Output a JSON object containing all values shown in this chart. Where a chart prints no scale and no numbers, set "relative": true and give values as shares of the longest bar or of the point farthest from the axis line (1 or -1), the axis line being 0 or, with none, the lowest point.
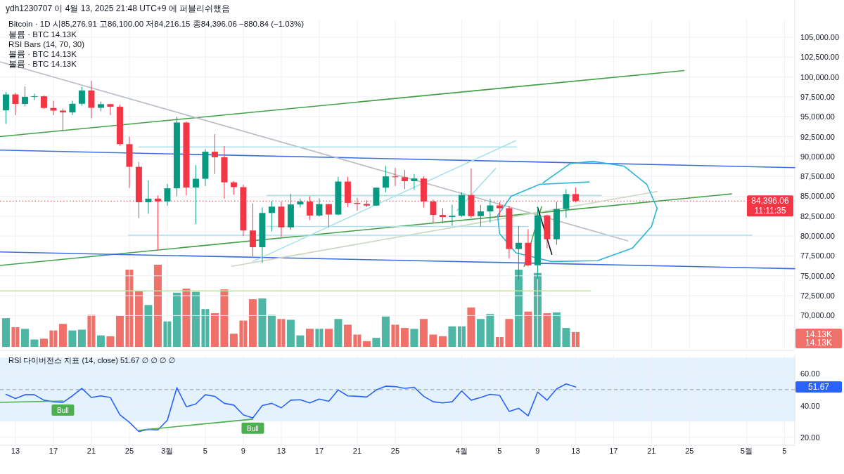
{
  "chart_data": [
    {
      "type": "candlestick",
      "title": "ydh1230707 이 4월 13, 2025 21:48 UTC+9 에 퍼블리쉬했음",
      "subtitle": "Bitcoin · 1D  시85,276.91 고86,100.00 저84,216.15 종84,396.06 −880.84 (−1.03%)",
      "annotations": [
        "볼륨 · BTC 14.13K",
        "RSI Bars (14, 70, 30)",
        "볼륨 · BTC 14.13K",
        "볼륨 · BTC 14.13K"
      ],
      "x": [
        "2025-02-12",
        "2025-02-13",
        "2025-02-14",
        "2025-02-15",
        "2025-02-16",
        "2025-02-17",
        "2025-02-18",
        "2025-02-19",
        "2025-02-20",
        "2025-02-21",
        "2025-02-22",
        "2025-02-23",
        "2025-02-24",
        "2025-02-25",
        "2025-02-26",
        "2025-02-27",
        "2025-02-28",
        "2025-03-01",
        "2025-03-02",
        "2025-03-03",
        "2025-03-04",
        "2025-03-05",
        "2025-03-06",
        "2025-03-07",
        "2025-03-08",
        "2025-03-09",
        "2025-03-10",
        "2025-03-11",
        "2025-03-12",
        "2025-03-13",
        "2025-03-14",
        "2025-03-15",
        "2025-03-16",
        "2025-03-17",
        "2025-03-18",
        "2025-03-19",
        "2025-03-20",
        "2025-03-21",
        "2025-03-22",
        "2025-03-23",
        "2025-03-24",
        "2025-03-25",
        "2025-03-26",
        "2025-03-27",
        "2025-03-28",
        "2025-03-29",
        "2025-03-30",
        "2025-03-31",
        "2025-04-01",
        "2025-04-02",
        "2025-04-03",
        "2025-04-04",
        "2025-04-05",
        "2025-04-06",
        "2025-04-07",
        "2025-04-08",
        "2025-04-09",
        "2025-04-10",
        "2025-04-11",
        "2025-04-12",
        "2025-04-13"
      ],
      "ohlc": [
        [
          95800,
          98100,
          94100,
          97800
        ],
        [
          97800,
          98000,
          95200,
          96600
        ],
        [
          96600,
          98800,
          96300,
          97500
        ],
        [
          97500,
          97900,
          97100,
          97570
        ],
        [
          97570,
          97700,
          96000,
          96100
        ],
        [
          96100,
          97000,
          95200,
          95770
        ],
        [
          95770,
          96000,
          93300,
          95540
        ],
        [
          95540,
          97000,
          95200,
          96630
        ],
        [
          96630,
          98750,
          96400,
          98300
        ],
        [
          98300,
          99500,
          94800,
          96120
        ],
        [
          96120,
          96900,
          95700,
          96580
        ],
        [
          96580,
          96650,
          95200,
          96250
        ],
        [
          96250,
          96500,
          91350,
          91550
        ],
        [
          91550,
          92500,
          86050,
          88700
        ],
        [
          88700,
          89300,
          82250,
          84250
        ],
        [
          84250,
          87000,
          82800,
          84700
        ],
        [
          84700,
          85100,
          78250,
          84350
        ],
        [
          84350,
          86550,
          83800,
          86000
        ],
        [
          86000,
          95000,
          85000,
          94270
        ],
        [
          94270,
          94400,
          85100,
          86100
        ],
        [
          86100,
          88900,
          81500,
          87200
        ],
        [
          87200,
          90900,
          86300,
          90600
        ],
        [
          90600,
          92800,
          87800,
          89900
        ],
        [
          89900,
          91300,
          84700,
          86750
        ],
        [
          86750,
          86900,
          85200,
          86150
        ],
        [
          86150,
          86450,
          80000,
          80700
        ],
        [
          80700,
          84100,
          77450,
          78600
        ],
        [
          78600,
          83600,
          76600,
          82900
        ],
        [
          82900,
          84400,
          80600,
          83700
        ],
        [
          83700,
          84300,
          79900,
          81100
        ],
        [
          81100,
          85300,
          80800,
          83970
        ],
        [
          83970,
          84700,
          83600,
          84340
        ],
        [
          84340,
          85000,
          82000,
          82580
        ],
        [
          82580,
          84750,
          82450,
          84010
        ],
        [
          84010,
          84050,
          81100,
          82700
        ],
        [
          82700,
          87450,
          82600,
          86850
        ],
        [
          86850,
          87450,
          83650,
          84170
        ],
        [
          84170,
          84800,
          83200,
          84040
        ],
        [
          84040,
          84500,
          83650,
          83830
        ],
        [
          83830,
          86100,
          83800,
          86080
        ],
        [
          86080,
          88800,
          85500,
          87500
        ],
        [
          87500,
          88550,
          86300,
          87400
        ],
        [
          87400,
          88300,
          85900,
          86900
        ],
        [
          86900,
          87800,
          85800,
          87230
        ],
        [
          87230,
          87500,
          83600,
          84350
        ],
        [
          84350,
          84600,
          81600,
          82650
        ],
        [
          82650,
          83500,
          81600,
          82390
        ],
        [
          82390,
          83950,
          81300,
          82550
        ],
        [
          82550,
          85500,
          82400,
          85160
        ],
        [
          85160,
          88500,
          82300,
          82500
        ],
        [
          82500,
          83900,
          81200,
          83100
        ],
        [
          83100,
          84700,
          81700,
          83850
        ],
        [
          83850,
          84250,
          82400,
          83500
        ],
        [
          83500,
          83800,
          77150,
          78370
        ],
        [
          78370,
          81250,
          74500,
          79150
        ],
        [
          79150,
          80850,
          76200,
          76320
        ],
        [
          76320,
          83600,
          74600,
          82600
        ],
        [
          82600,
          82700,
          78450,
          79600
        ],
        [
          79600,
          84300,
          78900,
          83400
        ],
        [
          83400,
          85900,
          82300,
          85280
        ],
        [
          85276.91,
          86100,
          84216.15,
          84396.06
        ]
      ],
      "colors": [
        "#089981",
        "#f23645",
        "#089981",
        "#089981",
        "#f23645",
        "#f23645",
        "#f23645",
        "#089981",
        "#089981",
        "#f23645",
        "#089981",
        "#f23645",
        "#f23645",
        "#f23645",
        "#f23645",
        "#089981",
        "#f23645",
        "#089981",
        "#089981",
        "#f23645",
        "#089981",
        "#089981",
        "#f23645",
        "#f23645",
        "#f23645",
        "#f23645",
        "#f23645",
        "#089981",
        "#089981",
        "#f23645",
        "#089981",
        "#089981",
        "#f23645",
        "#089981",
        "#f23645",
        "#089981",
        "#f23645",
        "#f23645",
        "#f23645",
        "#089981",
        "#089981",
        "#f23645",
        "#f23645",
        "#089981",
        "#f23645",
        "#f23645",
        "#f23645",
        "#089981",
        "#089981",
        "#f23645",
        "#089981",
        "#089981",
        "#f23645",
        "#f23645",
        "#089981",
        "#f23645",
        "#089981",
        "#f23645",
        "#089981",
        "#089981",
        "#f23645"
      ],
      "series": [
        {
          "type": "line",
          "color": "#43a047",
          "x": [
            "2025-02-11T09:00",
            "2025-04-24T10:00"
          ],
          "values": [
            92500,
            100800
          ]
        },
        {
          "type": "line",
          "color": "#43a047",
          "x": [
            "2025-02-11T09:00",
            "2025-04-29T10:00"
          ],
          "values": [
            76300,
            85300
          ]
        },
        {
          "type": "line",
          "color": "#3d6ee0",
          "x": [
            "2025-02-11T09:00",
            "2025-05-06T02:00"
          ],
          "values": [
            90800,
            88600
          ]
        },
        {
          "type": "line",
          "color": "#3d6ee0",
          "x": [
            "2025-02-11T09:00",
            "2025-05-06T02:00"
          ],
          "values": [
            78000,
            75900
          ]
        },
        {
          "type": "line",
          "color": "#b8bcc4",
          "x": [
            "2025-02-11T09:00",
            "2025-04-18T12:00"
          ],
          "values": [
            101900,
            79400
          ]
        },
        {
          "type": "line",
          "color": "#c9d6bd",
          "x": [
            "2025-03-07T19:00",
            "2025-04-21T14:00"
          ],
          "values": [
            76200,
            85600
          ]
        },
        {
          "type": "line",
          "color": "#a9e2ea",
          "x": [
            "2025-02-26",
            "2025-04-06T19:00"
          ],
          "values": [
            91200,
            91200
          ]
        },
        {
          "type": "line",
          "color": "#a9e2ea",
          "x": [
            "2025-02-24T22:00",
            "2025-05-01T14:00"
          ],
          "values": [
            80100,
            80100
          ]
        },
        {
          "type": "line",
          "color": "#a9e2ea",
          "x": [
            "2025-03-11T12:00",
            "2025-04-15T17:00"
          ],
          "values": [
            85100,
            85100
          ]
        },
        {
          "type": "line",
          "color": "#a9e2ea",
          "x": [
            "2025-03-11T12:00",
            "2025-04-08"
          ],
          "values": [
            81200,
            81200
          ]
        },
        {
          "type": "line",
          "color": "#c5e1a5",
          "x": [
            "2025-02-11T09:00",
            "2025-04-14T14:00"
          ],
          "values": [
            73100,
            73100
          ]
        },
        {
          "type": "line",
          "color": "#a9e2ea",
          "x": [
            "2025-03-10",
            "2025-04-06T17:00"
          ],
          "values": [
            76800,
            92000
          ]
        },
        {
          "type": "line",
          "color": "#a9e2ea",
          "x": [
            "2025-03-31T12:00",
            "2025-04-04T14:00"
          ],
          "values": [
            83200,
            88500
          ]
        },
        {
          "type": "line",
          "color": "#2bb5d6",
          "x": [
            "2025-04-09T14:00",
            "2025-04-12T10:00",
            "2025-04-14T19:00",
            "2025-04-18T02:00",
            "2025-04-20T12:00",
            "2025-04-21T14:00",
            "2025-04-21",
            "2025-04-19",
            "2025-04-15T07:00",
            "2025-04-10T10:00",
            "2025-04-06T17:00",
            "2025-04-05",
            "2025-04-04T19:00",
            "2025-04-06T05:00",
            "2025-04-09T05:00",
            "2025-04-14T10:00"
          ],
          "values": [
            86700,
            89100,
            89400,
            88800,
            86500,
            83500,
            81200,
            78500,
            76900,
            76800,
            77900,
            80300,
            82600,
            85000,
            86500,
            86800
          ]
        },
        {
          "type": "line",
          "color": "#4caf50",
          "x": [
            "2025-04-07T14:00",
            "2025-04-09T10:00"
          ],
          "values": [
            76200,
            83700
          ]
        },
        {
          "type": "line",
          "color": "#131722",
          "x": [
            "2025-04-09",
            "2025-04-10T12:00"
          ],
          "values": [
            83600,
            77700
          ]
        }
      ],
      "ref_lines": [
        {
          "axis": "y",
          "value": 84396.06,
          "label": "84,396.06\n11:11:35",
          "color": "#f23645",
          "line_style": "dotted"
        }
      ],
      "xlim": [
        "2025-02-11T09:00",
        "2025-05-06T02:00"
      ],
      "ylim": [
        65800,
        107200
      ],
      "xticks": [
        "2025-02-13",
        "2025-02-17",
        "2025-02-21",
        "2025-02-25",
        "2025-03-01",
        "2025-03-05",
        "2025-03-09",
        "2025-03-13",
        "2025-03-17",
        "2025-03-21",
        "2025-03-25",
        "2025-04-01",
        "2025-04-05",
        "2025-04-09",
        "2025-04-13",
        "2025-04-17",
        "2025-04-21",
        "2025-04-25",
        "2025-05-01",
        "2025-05-05"
      ],
      "yticks": [
        {
          "value": 70000,
          "label": "70,000.00"
        },
        {
          "value": 72500,
          "label": "72,500.00"
        },
        {
          "value": 75000,
          "label": "75,000.00"
        },
        {
          "value": 77500,
          "label": "77,500.00"
        },
        {
          "value": 80000,
          "label": "80,000.00"
        },
        {
          "value": 82500,
          "label": "82,500.00"
        },
        {
          "value": 85000,
          "label": "85,000.00"
        },
        {
          "value": 87500,
          "label": "87,500.00"
        },
        {
          "value": 90000,
          "label": "90,000.00"
        },
        {
          "value": 92500,
          "label": "92,500.00"
        },
        {
          "value": 95000,
          "label": "95,000.00"
        },
        {
          "value": 97500,
          "label": "97,500.00"
        },
        {
          "value": 100000,
          "label": "100,000.00"
        },
        {
          "value": 102500,
          "label": "102,500.00"
        },
        {
          "value": 105000,
          "label": "105,000.00"
        }
      ],
      "tick_labels": "y",
      "grid": true
    },
    {
      "type": "bar",
      "relative": true,
      "tick_labels": false,
      "annotations": [
        "14.13K",
        "14.13K"
      ],
      "categories": [
        null,
        null,
        null,
        null,
        null,
        null,
        null,
        null,
        null,
        null,
        null,
        null,
        null,
        null,
        null,
        null,
        null,
        null,
        null,
        null,
        null,
        null,
        null,
        null,
        null,
        null,
        null,
        null,
        null,
        null,
        null,
        null,
        null,
        null,
        null,
        null,
        null,
        null,
        null,
        null,
        null,
        null,
        null,
        null,
        null,
        null,
        null,
        null,
        null,
        null,
        null,
        null,
        null,
        null,
        null,
        null,
        null,
        null,
        null,
        null,
        null
      ],
      "values": [
        0.35,
        0.24,
        0.22,
        0.09,
        0.1,
        0.2,
        0.28,
        0.2,
        0.21,
        0.39,
        0.14,
        0.13,
        0.38,
        0.94,
        0.68,
        0.51,
        1,
        0.31,
        0.66,
        0.71,
        0.67,
        0.46,
        0.41,
        0.7,
        0.16,
        0.32,
        0.58,
        0.59,
        0.39,
        0.34,
        0.33,
        0.14,
        0.22,
        0.22,
        0.22,
        0.34,
        0.27,
        0.15,
        0.07,
        0.11,
        0.37,
        0.27,
        0.23,
        0.22,
        0.34,
        0.15,
        0.13,
        0.25,
        0.25,
        0.48,
        0.34,
        0.4,
        0.12,
        0.34,
        0.94,
        0.43,
        0.9,
        0.41,
        0.42,
        0.23,
        0.18
      ],
      "colors": [
        "#4db6a4",
        "#f0706a",
        "#4db6a4",
        "#4db6a4",
        "#f0706a",
        "#f0706a",
        "#f0706a",
        "#4db6a4",
        "#4db6a4",
        "#f0706a",
        "#4db6a4",
        "#f0706a",
        "#f0706a",
        "#f0706a",
        "#f0706a",
        "#4db6a4",
        "#f0706a",
        "#4db6a4",
        "#4db6a4",
        "#f0706a",
        "#4db6a4",
        "#4db6a4",
        "#f0706a",
        "#f0706a",
        "#f0706a",
        "#f0706a",
        "#f0706a",
        "#4db6a4",
        "#4db6a4",
        "#f0706a",
        "#4db6a4",
        "#4db6a4",
        "#f0706a",
        "#4db6a4",
        "#f0706a",
        "#4db6a4",
        "#f0706a",
        "#f0706a",
        "#f0706a",
        "#4db6a4",
        "#4db6a4",
        "#f0706a",
        "#f0706a",
        "#4db6a4",
        "#f0706a",
        "#f0706a",
        "#f0706a",
        "#4db6a4",
        "#4db6a4",
        "#f0706a",
        "#4db6a4",
        "#4db6a4",
        "#f0706a",
        "#f0706a",
        "#4db6a4",
        "#f0706a",
        "#4db6a4",
        "#f0706a",
        "#4db6a4",
        "#4db6a4",
        "#f0706a"
      ]
    },
    {
      "type": "line",
      "title": "RSI 다이버전스 지표 (14, close)  51.67  ∅ ∅ ∅ ∅",
      "x": [
        "2025-02-12",
        "2025-02-13",
        "2025-02-14",
        "2025-02-15",
        "2025-02-16",
        "2025-02-17",
        "2025-02-18",
        "2025-02-19",
        "2025-02-20",
        "2025-02-21",
        "2025-02-22",
        "2025-02-23",
        "2025-02-24",
        "2025-02-25",
        "2025-02-26",
        "2025-02-27",
        "2025-02-28",
        "2025-03-01",
        "2025-03-02",
        "2025-03-03",
        "2025-03-04",
        "2025-03-05",
        "2025-03-06",
        "2025-03-07",
        "2025-03-08",
        "2025-03-09",
        "2025-03-10",
        "2025-03-11",
        "2025-03-12",
        "2025-03-13",
        "2025-03-14",
        "2025-03-15",
        "2025-03-16",
        "2025-03-17",
        "2025-03-18",
        "2025-03-19",
        "2025-03-20",
        "2025-03-21",
        "2025-03-22",
        "2025-03-23",
        "2025-03-24",
        "2025-03-25",
        "2025-03-26",
        "2025-03-27",
        "2025-03-28",
        "2025-03-29",
        "2025-03-30",
        "2025-03-31",
        "2025-04-01",
        "2025-04-02",
        "2025-04-03",
        "2025-04-04",
        "2025-04-05",
        "2025-04-06",
        "2025-04-07",
        "2025-04-08",
        "2025-04-09",
        "2025-04-10",
        "2025-04-11",
        "2025-04-12",
        "2025-04-13"
      ],
      "series": [
        {
          "color": "#2962ff",
          "values": [
            47.1,
            44.4,
            46.8,
            46.8,
            43.4,
            42.4,
            42.0,
            46.1,
            50.8,
            45.1,
            46.1,
            45.1,
            34.2,
            29.5,
            23.7,
            25.1,
            24.7,
            30.8,
            51.2,
            39.3,
            41.0,
            46.8,
            45.8,
            41.4,
            40.3,
            34.2,
            32.2,
            40.0,
            41.4,
            38.6,
            43.4,
            43.7,
            41.7,
            44.1,
            42.7,
            49.8,
            46.1,
            45.8,
            45.4,
            49.8,
            52.2,
            51.9,
            50.8,
            51.5,
            45.8,
            42.4,
            41.7,
            42.4,
            49.2,
            43.4,
            45.1,
            47.1,
            46.4,
            36.3,
            38.3,
            33.6,
            48.5,
            43.4,
            50.5,
            53.6,
            51.67
          ]
        },
        {
          "color": "#4caf50",
          "x": [
            "2025-02-11T09:00",
            "2025-02-18"
          ],
          "values": [
            42.0,
            42.9
          ]
        },
        {
          "color": "#4caf50",
          "x": [
            "2025-02-26",
            "2025-03-10"
          ],
          "values": [
            24.5,
            31.5
          ]
        }
      ],
      "annotations": [
        {
          "text": "Bull",
          "x": "2025-02-18",
          "y": 42.9
        },
        {
          "text": "Bull",
          "x": "2025-03-10",
          "y": 31.5
        },
        "51.67"
      ],
      "bands": [
        {
          "axis": "y",
          "from": 30,
          "to": 70,
          "color": "#e3f2fd"
        }
      ],
      "ref_lines": [
        {
          "axis": "y",
          "value": 50,
          "color": "#9598a1",
          "line_style": "dashed"
        }
      ],
      "xlim": [
        "2025-02-11T09:00",
        "2025-05-06T02:00"
      ],
      "ylim": [
        16,
        72
      ],
      "yticks": [
        {
          "value": 20,
          "label": "20.00"
        },
        {
          "value": 40,
          "label": "40.00"
        },
        {
          "value": 60,
          "label": "60.00"
        }
      ],
      "xticks": [
        {
          "value": "2025-02-13",
          "label": "13"
        },
        {
          "value": "2025-02-17",
          "label": "17"
        },
        {
          "value": "2025-02-21",
          "label": "21"
        },
        {
          "value": "2025-02-25",
          "label": "25"
        },
        {
          "value": "2025-03-01",
          "label": "3월"
        },
        {
          "value": "2025-03-05",
          "label": "5"
        },
        {
          "value": "2025-03-09",
          "label": "9"
        },
        {
          "value": "2025-03-13",
          "label": "13"
        },
        {
          "value": "2025-03-17",
          "label": "17"
        },
        {
          "value": "2025-03-21",
          "label": "21"
        },
        {
          "value": "2025-03-25",
          "label": "25"
        },
        {
          "value": "2025-04-01",
          "label": "4월"
        },
        {
          "value": "2025-04-05",
          "label": "5"
        },
        {
          "value": "2025-04-09",
          "label": "9"
        },
        {
          "value": "2025-04-13",
          "label": "13"
        },
        {
          "value": "2025-04-17",
          "label": "17"
        },
        {
          "value": "2025-04-21",
          "label": "21"
        },
        {
          "value": "2025-04-25",
          "label": "25"
        },
        {
          "value": "2025-05-01",
          "label": "5월"
        },
        {
          "value": "2025-05-05",
          "label": "5"
        }
      ],
      "grid": true
    }
  ]
}
